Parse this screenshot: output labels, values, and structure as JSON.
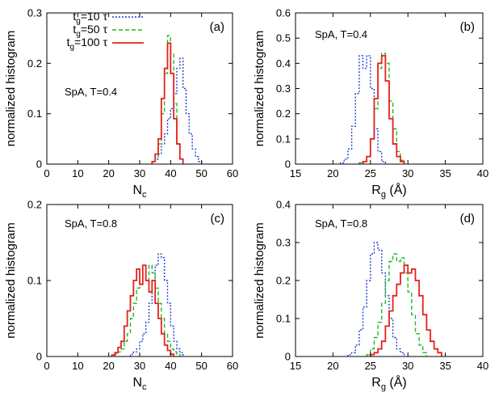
{
  "chart_data": [
    {
      "type": "line",
      "panel_label": "(a)",
      "annotation": "SpA, T=0.4",
      "xlabel_main": "N",
      "xlabel_sub": "c",
      "ylabel": "normalized histogram",
      "xlim": [
        0,
        60
      ],
      "ylim": [
        0,
        0.3
      ],
      "xticks": [
        0,
        10,
        20,
        30,
        40,
        50,
        60
      ],
      "yticks": [
        0,
        0.1,
        0.2,
        0.3
      ],
      "xtick_labels": [
        "0",
        "10",
        "20",
        "30",
        "40",
        "50",
        "60"
      ],
      "ytick_labels": [
        "0",
        "0.1",
        "0.2",
        "0.3"
      ],
      "legend": {
        "placement": "top-left",
        "entries": [
          {
            "pre": "t",
            "sub": "g",
            "post": "=10 τ"
          },
          {
            "pre": "t",
            "sub": "g",
            "post": "=50 τ"
          },
          {
            "pre": "t",
            "sub": "g",
            "post": "=100 τ"
          }
        ]
      },
      "bin_width": 1,
      "series": [
        {
          "color": "#1f3fd1",
          "dash": "2,2",
          "x_start": 34,
          "values": [
            0.005,
            0.01,
            0.02,
            0.04,
            0.06,
            0.09,
            0.11,
            0.14,
            0.19,
            0.21,
            0.15,
            0.1,
            0.06,
            0.03,
            0.015,
            0.005
          ]
        },
        {
          "color": "#22b822",
          "dash": "5,3",
          "x_start": 34,
          "values": [
            0.005,
            0.015,
            0.04,
            0.1,
            0.18,
            0.255,
            0.22,
            0.12,
            0.04,
            0.01
          ]
        },
        {
          "color": "#e3221c",
          "dash": "",
          "x_start": 34,
          "values": [
            0.005,
            0.02,
            0.05,
            0.13,
            0.19,
            0.24,
            0.18,
            0.09,
            0.04,
            0.01
          ]
        }
      ]
    },
    {
      "type": "line",
      "panel_label": "(b)",
      "annotation": "SpA, T=0.4",
      "xlabel_main": "R",
      "xlabel_sub": "g",
      "xlabel_post": " (Å)",
      "ylabel": "normalized histogram",
      "xlim": [
        15,
        40
      ],
      "ylim": [
        0,
        0.6
      ],
      "xticks": [
        15,
        20,
        25,
        30,
        35,
        40
      ],
      "yticks": [
        0,
        0.1,
        0.2,
        0.3,
        0.4,
        0.5,
        0.6
      ],
      "xtick_labels": [
        "15",
        "20",
        "25",
        "30",
        "35",
        "40"
      ],
      "ytick_labels": [
        "0",
        "0.1",
        "0.2",
        "0.3",
        "0.4",
        "0.5",
        "0.6"
      ],
      "bin_width": 0.5,
      "series": [
        {
          "color": "#1f3fd1",
          "dash": "2,2",
          "x_start": 21,
          "values": [
            0.005,
            0.02,
            0.06,
            0.15,
            0.28,
            0.43,
            0.38,
            0.43,
            0.3,
            0.14,
            0.05,
            0.01
          ]
        },
        {
          "color": "#22b822",
          "dash": "5,3",
          "x_start": 23.5,
          "values": [
            0.005,
            0.01,
            0.03,
            0.1,
            0.22,
            0.38,
            0.44,
            0.4,
            0.25,
            0.14,
            0.05,
            0.015
          ]
        },
        {
          "color": "#e3221c",
          "dash": "",
          "x_start": 24,
          "values": [
            0.01,
            0.03,
            0.1,
            0.26,
            0.4,
            0.43,
            0.33,
            0.18,
            0.08,
            0.03,
            0.01
          ]
        }
      ]
    },
    {
      "type": "line",
      "panel_label": "(c)",
      "annotation": "SpA, T=0.8",
      "xlabel_main": "N",
      "xlabel_sub": "c",
      "ylabel": "normalized histogram",
      "xlim": [
        0,
        60
      ],
      "ylim": [
        0,
        0.2
      ],
      "xticks": [
        0,
        10,
        20,
        30,
        40,
        50,
        60
      ],
      "yticks": [
        0,
        0.1,
        0.2
      ],
      "xtick_labels": [
        "0",
        "10",
        "20",
        "30",
        "40",
        "50",
        "60"
      ],
      "ytick_labels": [
        "0",
        "0.1",
        "0.2"
      ],
      "bin_width": 1,
      "series": [
        {
          "color": "#1f3fd1",
          "dash": "2,2",
          "x_start": 27,
          "values": [
            0.003,
            0.006,
            0.01,
            0.02,
            0.03,
            0.045,
            0.07,
            0.1,
            0.12,
            0.135,
            0.13,
            0.1,
            0.07,
            0.04,
            0.02,
            0.01,
            0.005
          ]
        },
        {
          "color": "#22b822",
          "dash": "5,3",
          "x_start": 22,
          "values": [
            0.003,
            0.006,
            0.01,
            0.02,
            0.03,
            0.05,
            0.07,
            0.09,
            0.1,
            0.105,
            0.1,
            0.12,
            0.11,
            0.09,
            0.07,
            0.05,
            0.03,
            0.02,
            0.01,
            0.006,
            0.003
          ]
        },
        {
          "color": "#e3221c",
          "dash": "",
          "x_start": 21,
          "values": [
            0.002,
            0.005,
            0.012,
            0.02,
            0.04,
            0.06,
            0.08,
            0.1,
            0.115,
            0.095,
            0.12,
            0.1,
            0.085,
            0.1,
            0.07,
            0.05,
            0.03,
            0.015,
            0.008,
            0.003
          ]
        }
      ]
    },
    {
      "type": "line",
      "panel_label": "(d)",
      "annotation": "SpA, T=0.8",
      "xlabel_main": "R",
      "xlabel_sub": "g",
      "xlabel_post": " (Å)",
      "ylabel": "normalized histogram",
      "xlim": [
        15,
        40
      ],
      "ylim": [
        0,
        0.4
      ],
      "xticks": [
        15,
        20,
        25,
        30,
        35,
        40
      ],
      "yticks": [
        0,
        0.1,
        0.2,
        0.3,
        0.4
      ],
      "xtick_labels": [
        "15",
        "20",
        "25",
        "30",
        "35",
        "40"
      ],
      "ytick_labels": [
        "0",
        "0.1",
        "0.2",
        "0.3",
        "0.4"
      ],
      "bin_width": 0.5,
      "series": [
        {
          "color": "#1f3fd1",
          "dash": "2,2",
          "x_start": 22,
          "values": [
            0.005,
            0.01,
            0.03,
            0.07,
            0.13,
            0.2,
            0.27,
            0.3,
            0.28,
            0.22,
            0.16,
            0.1,
            0.05,
            0.02,
            0.01
          ]
        },
        {
          "color": "#22b822",
          "dash": "5,3",
          "x_start": 24.5,
          "values": [
            0.005,
            0.02,
            0.05,
            0.09,
            0.14,
            0.2,
            0.25,
            0.27,
            0.25,
            0.26,
            0.22,
            0.17,
            0.11,
            0.06,
            0.03,
            0.01
          ]
        },
        {
          "color": "#e3221c",
          "dash": "",
          "x_start": 25,
          "values": [
            0.005,
            0.01,
            0.02,
            0.04,
            0.08,
            0.12,
            0.16,
            0.19,
            0.22,
            0.24,
            0.22,
            0.23,
            0.2,
            0.16,
            0.11,
            0.07,
            0.04,
            0.02,
            0.01
          ]
        }
      ]
    }
  ]
}
